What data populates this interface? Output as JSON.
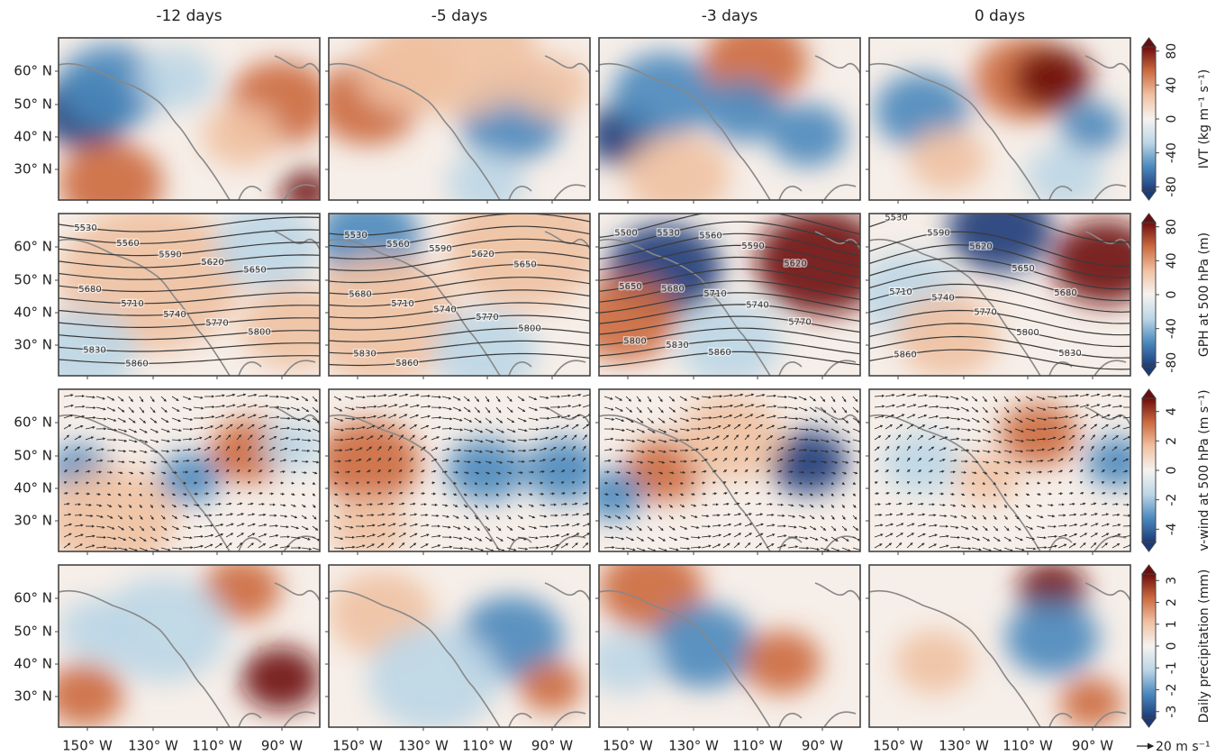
{
  "columns": [
    "-12 days",
    "-5 days",
    "-3 days",
    "0 days"
  ],
  "rows": [
    {
      "label": "IVT (kg m⁻¹ s⁻¹)",
      "ticks": [
        80,
        40,
        0,
        -40,
        -80
      ],
      "clim": [
        -85,
        85
      ]
    },
    {
      "label": "GPH at 500 hPa (m)",
      "ticks": [
        80,
        40,
        0,
        -40,
        -80
      ],
      "clim": [
        -85,
        85
      ]
    },
    {
      "label": "v-wind at 500 hPa (m s⁻¹)",
      "ticks": [
        4,
        2,
        0,
        -2,
        -4
      ],
      "clim": [
        -4.9,
        4.9
      ]
    },
    {
      "label": "Daily precipitation (mm)",
      "ticks": [
        3,
        2,
        1,
        0,
        -1,
        -2,
        -3
      ],
      "clim": [
        -3.3,
        3.3
      ]
    }
  ],
  "lat_ticks": [
    "60° N",
    "50° N",
    "40° N",
    "30° N"
  ],
  "lon_ticks": [
    "150° W",
    "130° W",
    "110° W",
    "90° W"
  ],
  "vector_key": "20 m s⁻¹",
  "gph_contours": [
    [
      5530,
      5560,
      5590,
      5620,
      5650,
      5680,
      5710,
      5740,
      5770,
      5800,
      5830,
      5860
    ],
    [
      5530,
      5560,
      5590,
      5620,
      5650,
      5680,
      5710,
      5740,
      5770,
      5800,
      5830,
      5860
    ],
    [
      5500,
      5530,
      5560,
      5590,
      5620,
      5650,
      5680,
      5710,
      5740,
      5770,
      5800,
      5830,
      5860
    ],
    [
      5530,
      5590,
      5620,
      5650,
      5680,
      5710,
      5740,
      5770,
      5800,
      5830,
      5860
    ]
  ],
  "colormap": [
    "#1c3a78",
    "#4a88bd",
    "#bcd6e6",
    "#f5f3f0",
    "#f0c1a2",
    "#cc6a3f",
    "#6d0c0c"
  ]
}
